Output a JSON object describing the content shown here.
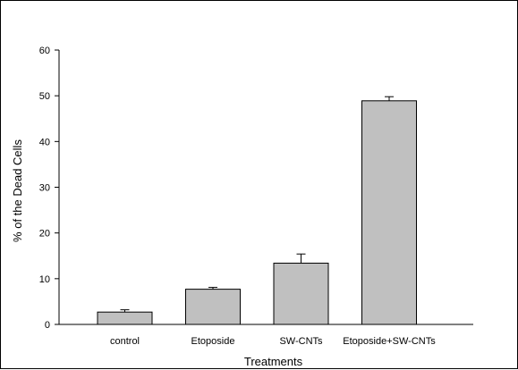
{
  "chart_data": {
    "type": "bar",
    "title": "",
    "xlabel": "Treatments",
    "ylabel": "% of the Dead Cells",
    "categories": [
      "control",
      "Etoposide",
      "SW-CNTs",
      "Etoposide+SW-CNTs"
    ],
    "values": [
      2.7,
      7.7,
      13.4,
      48.9
    ],
    "errors": [
      0.5,
      0.4,
      2.0,
      0.9
    ],
    "ylim": [
      0,
      60
    ],
    "yticks": [
      0,
      10,
      20,
      30,
      40,
      50,
      60
    ],
    "grid": false,
    "legend": "none",
    "bar_color": "#c0c0c0",
    "edge_color": "#000000"
  }
}
